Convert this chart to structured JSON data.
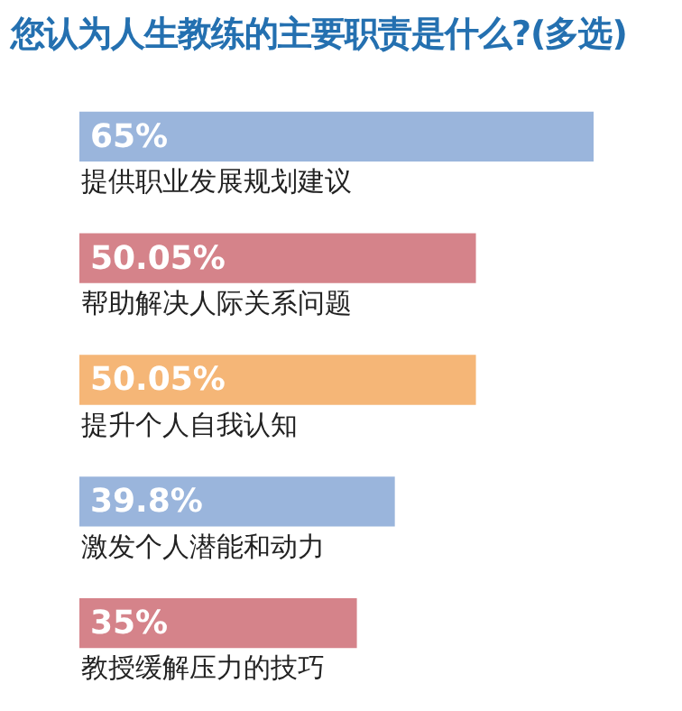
{
  "chart_data": {
    "type": "bar",
    "orientation": "horizontal",
    "title": "您认为人生教练的主要职责是什么?(多选)",
    "categories": [
      "提供职业发展规划建议",
      "帮助解决人际关系问题",
      "提升个人自我认知",
      "激发个人潜能和动力",
      "教授缓解压力的技巧"
    ],
    "values": [
      65,
      50.05,
      50.05,
      39.8,
      35
    ],
    "value_labels": [
      "65%",
      "50.05%",
      "50.05%",
      "39.8%",
      "35%"
    ],
    "colors": [
      "#9ab5dc",
      "#d5838a",
      "#f5b677",
      "#9ab5dc",
      "#d5838a"
    ],
    "legend": false
  }
}
